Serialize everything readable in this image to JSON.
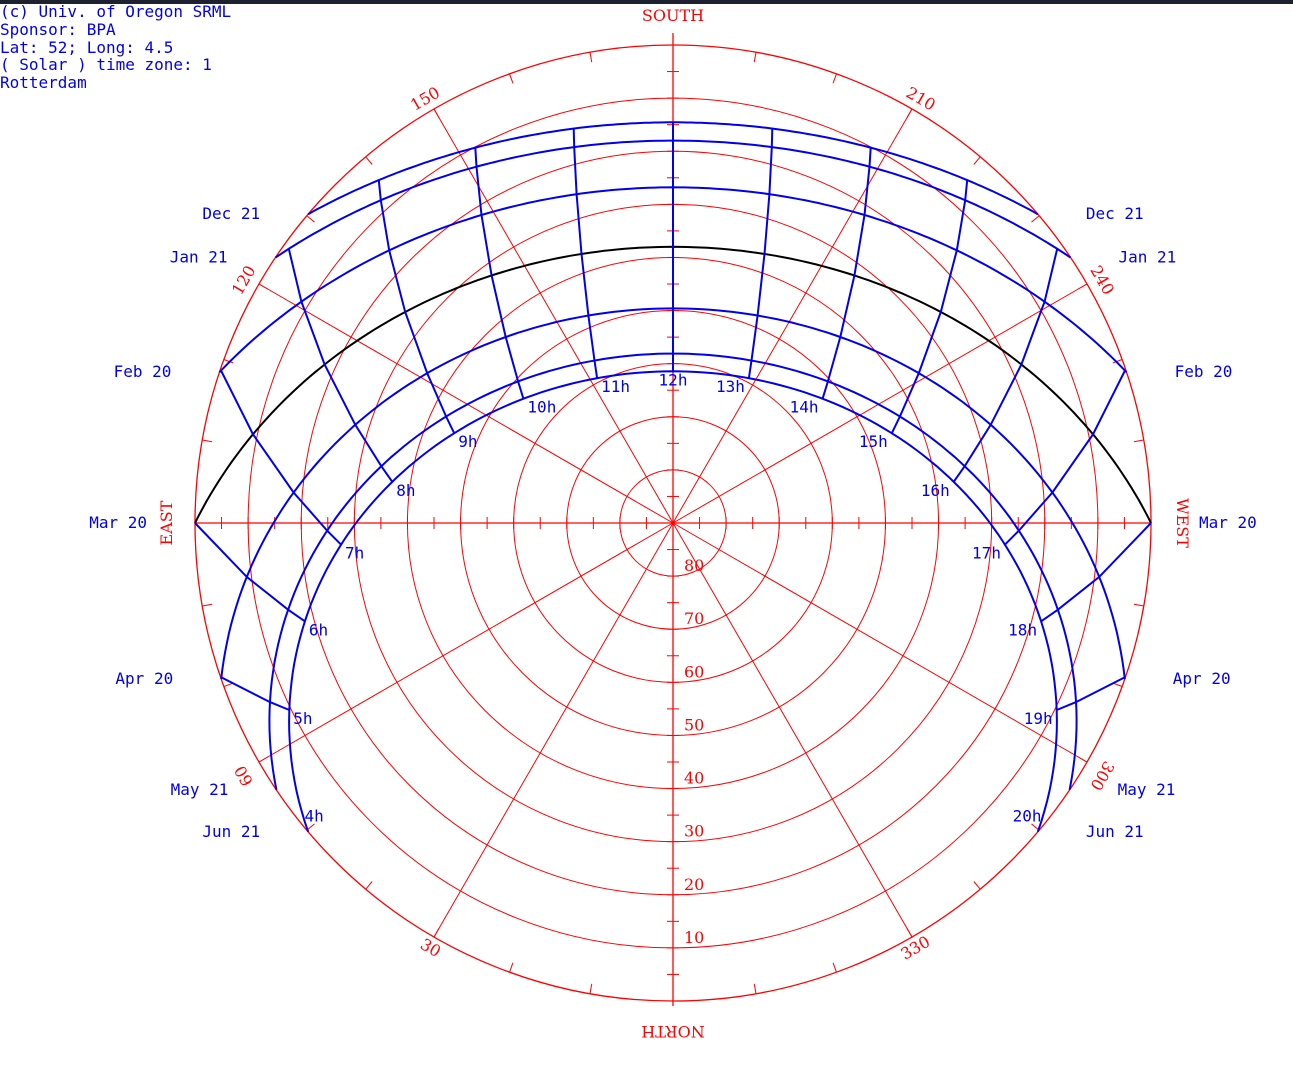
{
  "info": {
    "copyright": "(c) Univ. of Oregon SRML",
    "sponsor": "Sponsor: BPA",
    "location": "Lat: 52; Long: 4.5",
    "timezone": "( Solar ) time zone: 1",
    "city": "Rotterdam"
  },
  "colors": {
    "grid": "#ff0000",
    "paths": "#0000ee",
    "equinox": "#000000",
    "topbar": "#1e2230"
  },
  "compass": {
    "south": "SOUTH",
    "north": "NORTH",
    "east": "EAST",
    "west": "WEST"
  },
  "chart_data": {
    "type": "polar-sun-path",
    "title": "",
    "latitude": 52,
    "longitude": 4.5,
    "time_zone": 1,
    "location": "Rotterdam",
    "altitude_rings": [
      10,
      20,
      30,
      40,
      50,
      60,
      70,
      80
    ],
    "altitude_labels": [
      "10",
      "20",
      "30",
      "40",
      "50",
      "60",
      "70",
      "80"
    ],
    "azimuth_spokes": [
      30,
      60,
      120,
      150,
      210,
      240,
      300,
      330
    ],
    "azimuth_labels": [
      "30",
      "60",
      "120",
      "150",
      "210",
      "240",
      "300",
      "330"
    ],
    "date_curves": [
      {
        "name": "Dec 21",
        "declination": -23.44,
        "left_label": "Dec 21",
        "right_label": "Dec 21"
      },
      {
        "name": "Jan 21",
        "declination": -20.0,
        "left_label": "Jan 21",
        "right_label": "Jan 21"
      },
      {
        "name": "Feb 20",
        "declination": -11.2,
        "left_label": "Feb 20",
        "right_label": "Feb 20"
      },
      {
        "name": "Mar 20",
        "declination": 0.0,
        "left_label": "Mar 20",
        "right_label": "Mar 20"
      },
      {
        "name": "Apr 20",
        "declination": 11.6,
        "left_label": "Apr 20",
        "right_label": "Apr 20"
      },
      {
        "name": "May 21",
        "declination": 20.1,
        "left_label": "May 21",
        "right_label": "May 21"
      },
      {
        "name": "Jun 21",
        "declination": 23.44,
        "left_label": "Jun 21",
        "right_label": "Jun 21"
      }
    ],
    "hours": [
      4,
      5,
      6,
      7,
      8,
      9,
      10,
      11,
      12,
      13,
      14,
      15,
      16,
      17,
      18,
      19,
      20
    ],
    "hour_labels": [
      "4h",
      "5h",
      "6h",
      "7h",
      "8h",
      "9h",
      "10h",
      "11h",
      "12h",
      "13h",
      "14h",
      "15h",
      "16h",
      "17h",
      "18h",
      "19h",
      "20h"
    ]
  }
}
